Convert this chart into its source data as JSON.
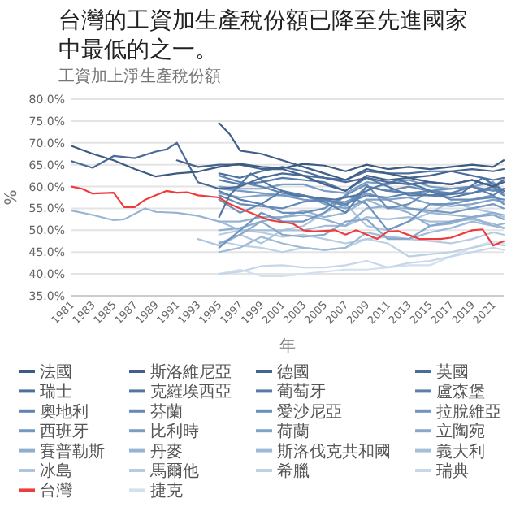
{
  "chart_data": {
    "type": "line",
    "title": "台灣的工資加生產稅份額已降至先進國家中最低的之一。",
    "subtitle": "工資加上淨生產稅份額",
    "xlabel": "年",
    "ylabel": "%",
    "xlim": [
      1981,
      2022
    ],
    "xticks": [
      1981,
      1983,
      1985,
      1987,
      1989,
      1991,
      1993,
      1995,
      1997,
      1999,
      2001,
      2003,
      2005,
      2007,
      2009,
      2011,
      2013,
      2015,
      2017,
      2019,
      2021
    ],
    "ylim": [
      35,
      80
    ],
    "yticks": [
      {
        "value": 35,
        "label": "35.0%"
      },
      {
        "value": 40,
        "label": "40.0%"
      },
      {
        "value": 45,
        "label": "45.0%"
      },
      {
        "value": 50,
        "label": "50.0%"
      },
      {
        "value": 55,
        "label": "55.0%"
      },
      {
        "value": 60,
        "label": "60.0%"
      },
      {
        "value": 65,
        "label": "65.0%"
      },
      {
        "value": 70,
        "label": "70.0%"
      },
      {
        "value": 75,
        "label": "75.0%"
      },
      {
        "value": 80,
        "label": "80.0%"
      }
    ],
    "grid": "y",
    "legend": "bottom",
    "marker": "none",
    "line_style": "solid",
    "series": [
      {
        "name": "法國",
        "color": "#3d5a80",
        "x": [
          1981,
          1983,
          1985,
          1987,
          1989,
          1991,
          1993,
          1995,
          1997,
          1999,
          2001,
          2003,
          2005,
          2007,
          2009,
          2011,
          2013,
          2015,
          2017,
          2019,
          2021,
          2022
        ],
        "values": [
          69.3,
          67.5,
          66,
          64,
          62.3,
          63,
          63.4,
          64.5,
          65.2,
          64.5,
          64.2,
          65.2,
          64.8,
          63.5,
          65,
          64,
          64.5,
          64,
          64.5,
          65,
          64.5,
          66
        ]
      },
      {
        "name": "斯洛維尼亞",
        "color": "#415f88",
        "x": [
          1995,
          1996,
          1997,
          1999,
          2001,
          2003,
          2005,
          2007,
          2009,
          2011,
          2013,
          2015,
          2017,
          2019,
          2021,
          2022
        ],
        "values": [
          74.5,
          72,
          68.2,
          67.5,
          66,
          64.5,
          63,
          61.5,
          64,
          63,
          62,
          61,
          60.5,
          61.5,
          60,
          61
        ]
      },
      {
        "name": "德國",
        "color": "#44648e",
        "x": [
          1991,
          1993,
          1995,
          1997,
          1999,
          2001,
          2003,
          2005,
          2007,
          2009,
          2011,
          2013,
          2015,
          2017,
          2019,
          2021,
          2022
        ],
        "values": [
          66,
          64.5,
          65,
          65,
          64,
          64,
          62.5,
          60.5,
          59,
          62.5,
          61.5,
          62,
          62.5,
          63.5,
          64,
          63.5,
          64
        ]
      },
      {
        "name": "英國",
        "color": "#4a6b97",
        "x": [
          1981,
          1983,
          1985,
          1987,
          1989,
          1990,
          1991,
          1993,
          1995,
          1997,
          1999,
          2001,
          2003,
          2005,
          2007,
          2009,
          2011,
          2013,
          2015,
          2017,
          2019,
          2021,
          2022
        ],
        "values": [
          65.8,
          64.3,
          67,
          66.5,
          68,
          68.5,
          70,
          61,
          59.5,
          60,
          62,
          63,
          62.5,
          62,
          61,
          62,
          61,
          60.5,
          61,
          60.5,
          61.5,
          60,
          61.5
        ]
      },
      {
        "name": "瑞士",
        "color": "#4e709c",
        "x": [
          1995,
          1997,
          1999,
          2001,
          2003,
          2005,
          2007,
          2009,
          2011,
          2013,
          2015,
          2017,
          2019,
          2021,
          2022
        ],
        "values": [
          63,
          62,
          63.5,
          64.5,
          63.5,
          62,
          61.5,
          63.5,
          63,
          63,
          63.5,
          63.5,
          62.5,
          61.5,
          62
        ]
      },
      {
        "name": "克羅埃西亞",
        "color": "#5276a3",
        "x": [
          1995,
          1996,
          1998,
          2000,
          2002,
          2004,
          2006,
          2008,
          2010,
          2012,
          2014,
          2016,
          2018,
          2020,
          2022
        ],
        "values": [
          53,
          58,
          63,
          60,
          58,
          57.5,
          57,
          58,
          60,
          61.5,
          60,
          58,
          58.5,
          62,
          59
        ]
      },
      {
        "name": "葡萄牙",
        "color": "#567ba8",
        "x": [
          1995,
          1997,
          1999,
          2001,
          2003,
          2005,
          2007,
          2009,
          2011,
          2013,
          2015,
          2017,
          2019,
          2021,
          2022
        ],
        "values": [
          61.5,
          60.5,
          61,
          62,
          61.5,
          61,
          59,
          62,
          60,
          58,
          58,
          57.5,
          58.5,
          60,
          58.5
        ]
      },
      {
        "name": "盧森堡",
        "color": "#5b80ad",
        "x": [
          1995,
          1997,
          1999,
          2001,
          2003,
          2005,
          2007,
          2009,
          2011,
          2013,
          2015,
          2017,
          2019,
          2021,
          2022
        ],
        "values": [
          59,
          57,
          56,
          59,
          58,
          56.5,
          54,
          60,
          59,
          58.5,
          58,
          58.5,
          60,
          58,
          59.5
        ]
      },
      {
        "name": "奧地利",
        "color": "#6085b1",
        "x": [
          1995,
          1997,
          1999,
          2001,
          2003,
          2005,
          2007,
          2009,
          2011,
          2013,
          2015,
          2017,
          2019,
          2021,
          2022
        ],
        "values": [
          62.5,
          61,
          60,
          58.5,
          58,
          57,
          56,
          58,
          57.5,
          58.5,
          59,
          58.5,
          58.5,
          59.5,
          58
        ]
      },
      {
        "name": "芬蘭",
        "color": "#658ab5",
        "x": [
          1995,
          1997,
          1999,
          2001,
          2003,
          2005,
          2007,
          2009,
          2011,
          2013,
          2015,
          2017,
          2019,
          2021,
          2022
        ],
        "values": [
          58,
          56,
          55.5,
          55,
          56.5,
          57,
          55.5,
          60,
          59,
          60,
          59,
          57,
          57,
          57.5,
          57
        ]
      },
      {
        "name": "愛沙尼亞",
        "color": "#6a8fb9",
        "x": [
          1995,
          1997,
          1999,
          2001,
          2003,
          2005,
          2007,
          2009,
          2011,
          2013,
          2015,
          2017,
          2019,
          2021,
          2022
        ],
        "values": [
          57,
          54,
          56,
          54,
          54,
          55,
          58,
          60.5,
          55,
          56,
          59,
          59.5,
          60,
          59,
          59.5
        ]
      },
      {
        "name": "拉脫維亞",
        "color": "#7094bd",
        "x": [
          1995,
          1997,
          1999,
          2001,
          2003,
          2005,
          2007,
          2009,
          2011,
          2013,
          2015,
          2017,
          2019,
          2021,
          2022
        ],
        "values": [
          46,
          50,
          54,
          52,
          52,
          54,
          58,
          56,
          50,
          52,
          56,
          56,
          57,
          58,
          56
        ]
      },
      {
        "name": "西班牙",
        "color": "#7699c1",
        "x": [
          1995,
          1997,
          1999,
          2001,
          2003,
          2005,
          2007,
          2009,
          2011,
          2013,
          2015,
          2017,
          2019,
          2021,
          2022
        ],
        "values": [
          59.5,
          59,
          58.5,
          58,
          57,
          56.5,
          56.5,
          58.5,
          57,
          55,
          54.5,
          54,
          55,
          56,
          55
        ]
      },
      {
        "name": "比利時",
        "color": "#7c9ec5",
        "x": [
          1995,
          1997,
          1999,
          2001,
          2003,
          2005,
          2007,
          2009,
          2011,
          2013,
          2015,
          2017,
          2019,
          2021,
          2022
        ],
        "values": [
          60,
          59.5,
          59.5,
          60.5,
          60.5,
          59,
          58.5,
          61,
          60.5,
          61.5,
          60,
          59.5,
          60,
          61,
          59
        ]
      },
      {
        "name": "荷蘭",
        "color": "#82a3c9",
        "x": [
          1995,
          1997,
          1999,
          2001,
          2003,
          2005,
          2007,
          2009,
          2011,
          2013,
          2015,
          2017,
          2019,
          2021,
          2022
        ],
        "values": [
          58.5,
          57.5,
          58,
          58,
          58,
          56,
          55,
          57,
          57,
          57.5,
          56,
          55.5,
          56,
          57,
          56.5
        ]
      },
      {
        "name": "立陶宛",
        "color": "#89a9cc",
        "x": [
          1995,
          1997,
          1999,
          2001,
          2003,
          2005,
          2007,
          2009,
          2011,
          2013,
          2015,
          2017,
          2019,
          2021,
          2022
        ],
        "values": [
          47,
          49,
          52,
          49,
          48.5,
          49,
          52,
          52.5,
          48,
          48,
          51,
          52,
          53,
          53.5,
          52.5
        ]
      },
      {
        "name": "賽普勒斯",
        "color": "#90aed0",
        "x": [
          1995,
          1997,
          1999,
          2001,
          2003,
          2005,
          2007,
          2009,
          2011,
          2013,
          2015,
          2017,
          2019,
          2021,
          2022
        ],
        "values": [
          50,
          50.5,
          52,
          53,
          53.5,
          52.5,
          51,
          55,
          55.5,
          54,
          51,
          51.5,
          53,
          54,
          53.5
        ]
      },
      {
        "name": "丹麥",
        "color": "#97b4d3",
        "x": [
          1981,
          1983,
          1985,
          1986,
          1988,
          1989,
          1991,
          1993,
          1995,
          1997,
          1999,
          2001,
          2003,
          2005,
          2007,
          2009,
          2011,
          2013,
          2015,
          2017,
          2019,
          2021,
          2022
        ],
        "values": [
          54.5,
          53.5,
          52.3,
          52.5,
          55,
          54.2,
          54,
          53.3,
          52,
          52,
          53,
          53,
          54.5,
          53,
          54,
          57,
          55,
          55,
          54,
          53.5,
          53,
          51,
          51.5
        ]
      },
      {
        "name": "斯洛伐克共和國",
        "color": "#9ebad7",
        "x": [
          1995,
          1997,
          1999,
          2001,
          2003,
          2005,
          2007,
          2009,
          2011,
          2013,
          2015,
          2017,
          2019,
          2021,
          2022
        ],
        "values": [
          45,
          46,
          48.5,
          47,
          46,
          45.5,
          46,
          49.5,
          48.5,
          48,
          49.5,
          50.5,
          52,
          51,
          50.5
        ]
      },
      {
        "name": "義大利",
        "color": "#a5bfda",
        "x": [
          1995,
          1997,
          1999,
          2001,
          2003,
          2005,
          2007,
          2009,
          2011,
          2013,
          2015,
          2017,
          2019,
          2021,
          2022
        ],
        "values": [
          52,
          50,
          50,
          50,
          50,
          51,
          51,
          53,
          52.5,
          53,
          52,
          52,
          52.5,
          51.5,
          50.5
        ]
      },
      {
        "name": "冰島",
        "color": "#adc5de",
        "x": [
          1993,
          1995,
          1997,
          1999,
          2001,
          2003,
          2005,
          2007,
          2009,
          2011,
          2013,
          2015,
          2017,
          2019,
          2021,
          2022
        ],
        "values": [
          48,
          46.5,
          49,
          47,
          50,
          51,
          54,
          56,
          51,
          50,
          52,
          54,
          56.5,
          55,
          54,
          53
        ]
      },
      {
        "name": "馬爾他",
        "color": "#b5cbe2",
        "x": [
          1995,
          1997,
          1999,
          2001,
          2003,
          2005,
          2007,
          2009,
          2011,
          2013,
          2015,
          2017,
          2019,
          2021,
          2022
        ],
        "values": [
          49,
          50,
          49.5,
          48.5,
          49,
          48,
          47,
          48,
          48.5,
          48,
          47.5,
          47,
          48,
          49.5,
          49
        ]
      },
      {
        "name": "希臘",
        "color": "#bdd1e5",
        "x": [
          1995,
          1997,
          1999,
          2001,
          2003,
          2005,
          2007,
          2009,
          2011,
          2013,
          2015,
          2017,
          2019,
          2021,
          2022
        ],
        "values": [
          47.5,
          46.5,
          46,
          45,
          46,
          45.5,
          46,
          48,
          47,
          44,
          44.5,
          45,
          46,
          47,
          46.5
        ]
      },
      {
        "name": "瑞典",
        "color": "#c6d7e9",
        "x": [
          1995,
          1997,
          1999,
          2001,
          2003,
          2005,
          2007,
          2009,
          2011,
          2013,
          2015,
          2017,
          2019,
          2021,
          2022
        ],
        "values": [
          40,
          40.5,
          41.8,
          42,
          41.5,
          41.5,
          42,
          43,
          41.5,
          42.5,
          43,
          44,
          45,
          46,
          45.5
        ]
      },
      {
        "name": "台灣",
        "color": "#ee3b3b",
        "x": [
          1981,
          1982,
          1983,
          1984,
          1985,
          1986,
          1987,
          1988,
          1989,
          1990,
          1991,
          1992,
          1993,
          1995,
          1996,
          1997,
          1999,
          2000,
          2002,
          2003,
          2004,
          2006,
          2007,
          2008,
          2010,
          2011,
          2012,
          2014,
          2016,
          2017,
          2019,
          2020,
          2021,
          2022
        ],
        "values": [
          60,
          59.5,
          58.4,
          58.5,
          58.6,
          55.3,
          55.3,
          57,
          58,
          59,
          58.6,
          58.7,
          58,
          57.5,
          56,
          55,
          53,
          52.2,
          51.5,
          50,
          49.7,
          50,
          49,
          50,
          48,
          49.7,
          49.8,
          48,
          48,
          48.3,
          50,
          50.2,
          46.5,
          47.5
        ]
      },
      {
        "name": "捷克",
        "color": "#d2e0ef",
        "x": [
          1995,
          1997,
          1999,
          2001,
          2003,
          2005,
          2007,
          2009,
          2011,
          2013,
          2015,
          2017,
          2019,
          2021,
          2022
        ],
        "values": [
          40,
          41,
          39.5,
          39.5,
          40,
          40.5,
          41,
          41,
          41.5,
          42,
          42,
          44,
          46,
          47.5,
          47
        ]
      }
    ]
  }
}
